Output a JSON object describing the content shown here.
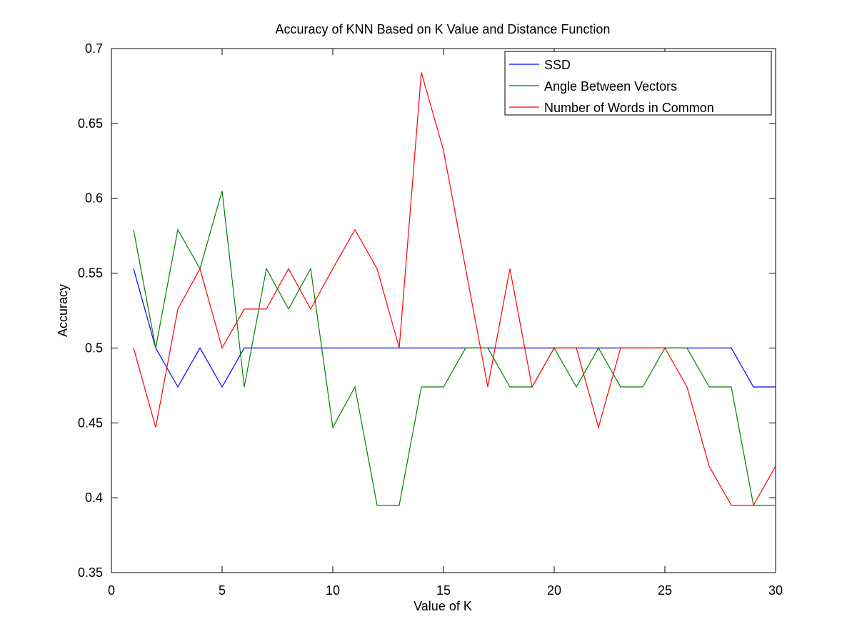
{
  "chart_data": {
    "type": "line",
    "title": "Accuracy of KNN Based on K Value and Distance Function",
    "xlabel": "Value of K",
    "ylabel": "Accuracy",
    "xlim": [
      0,
      30
    ],
    "ylim": [
      0.35,
      0.7
    ],
    "xticks": [
      0,
      5,
      10,
      15,
      20,
      25,
      30
    ],
    "xtick_labels": [
      "0",
      "5",
      "10",
      "15",
      "20",
      "25",
      "30"
    ],
    "yticks": [
      0.35,
      0.4,
      0.45,
      0.5,
      0.55,
      0.6,
      0.65,
      0.7
    ],
    "ytick_labels": [
      "0.35",
      "0.4",
      "0.45",
      "0.5",
      "0.55",
      "0.6",
      "0.65",
      "0.7"
    ],
    "grid": false,
    "legend_position": "top-right",
    "x": [
      1,
      2,
      3,
      4,
      5,
      6,
      7,
      8,
      9,
      10,
      11,
      12,
      13,
      14,
      15,
      16,
      17,
      18,
      19,
      20,
      21,
      22,
      23,
      24,
      25,
      26,
      27,
      28,
      29,
      30
    ],
    "series": [
      {
        "name": "SSD",
        "color": "#0000ff",
        "values": [
          0.553,
          0.5,
          0.474,
          0.5,
          0.474,
          0.5,
          0.5,
          0.5,
          0.5,
          0.5,
          0.5,
          0.5,
          0.5,
          0.5,
          0.5,
          0.5,
          0.5,
          0.5,
          0.5,
          0.5,
          0.5,
          0.5,
          0.5,
          0.5,
          0.5,
          0.5,
          0.5,
          0.5,
          0.474,
          0.474
        ]
      },
      {
        "name": "Angle Between Vectors",
        "color": "#008000",
        "values": [
          0.579,
          0.5,
          0.579,
          0.553,
          0.605,
          0.474,
          0.553,
          0.526,
          0.553,
          0.447,
          0.474,
          0.395,
          0.395,
          0.474,
          0.474,
          0.5,
          0.5,
          0.474,
          0.474,
          0.5,
          0.474,
          0.5,
          0.474,
          0.474,
          0.5,
          0.5,
          0.474,
          0.474,
          0.395,
          0.395
        ]
      },
      {
        "name": "Number of Words in Common",
        "color": "#ff0000",
        "values": [
          0.5,
          0.447,
          0.526,
          0.553,
          0.5,
          0.526,
          0.526,
          0.553,
          0.526,
          0.553,
          0.579,
          0.553,
          0.5,
          0.684,
          0.632,
          0.553,
          0.474,
          0.553,
          0.474,
          0.5,
          0.5,
          0.447,
          0.5,
          0.5,
          0.5,
          0.474,
          0.421,
          0.395,
          0.395,
          0.421
        ]
      }
    ]
  }
}
